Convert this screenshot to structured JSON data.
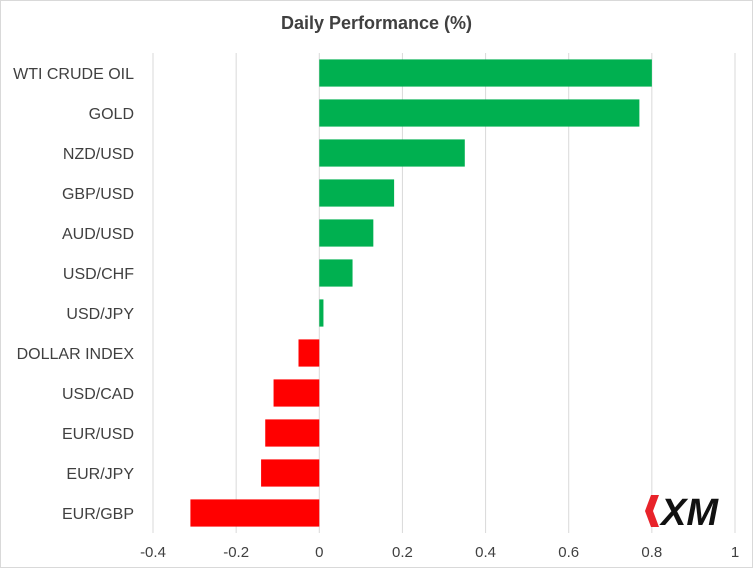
{
  "chart_data": {
    "type": "bar",
    "orientation": "horizontal",
    "title": "Daily Performance (%)",
    "categories": [
      "WTI CRUDE OIL",
      "GOLD",
      "NZD/USD",
      "GBP/USD",
      "AUD/USD",
      "USD/CHF",
      "USD/JPY",
      "DOLLAR INDEX",
      "USD/CAD",
      "EUR/USD",
      "EUR/JPY",
      "EUR/GBP"
    ],
    "values": [
      0.8,
      0.77,
      0.35,
      0.18,
      0.13,
      0.08,
      0.01,
      -0.05,
      -0.11,
      -0.13,
      -0.14,
      -0.31
    ],
    "xlim": [
      -0.4,
      1
    ],
    "xticks": [
      "-0.4",
      "-0.2",
      "0",
      "0.2",
      "0.4",
      "0.6",
      "0.8",
      "1"
    ],
    "xtick_values": [
      -0.4,
      -0.2,
      0,
      0.2,
      0.4,
      0.6,
      0.8,
      1
    ],
    "grid": "vertical",
    "colors": {
      "positive": "#00b050",
      "negative": "#ff0000"
    }
  },
  "logo": {
    "text": "XM",
    "color": "#e8232a"
  }
}
